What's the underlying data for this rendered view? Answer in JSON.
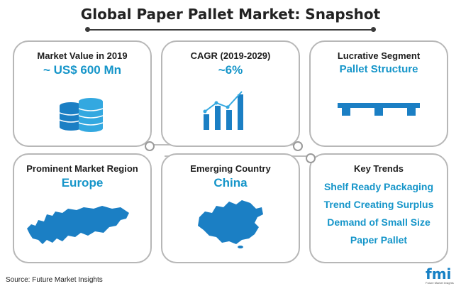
{
  "title": "Global Paper Pallet Market: Snapshot",
  "cards": [
    {
      "heading": "Market Value in 2019",
      "value": "~ US$ 600 Mn",
      "icon": "database-icon"
    },
    {
      "heading": "CAGR (2019-2029)",
      "value": "~6%",
      "icon": "bar-chart-icon"
    },
    {
      "heading": "Lucrative Segment",
      "value": "Pallet Structure",
      "icon": "pallet-icon"
    },
    {
      "heading": "Prominent Market Region",
      "value": "Europe",
      "icon": "europe-map-icon"
    },
    {
      "heading": "Emerging Country",
      "value": "China",
      "icon": "china-map-icon"
    },
    {
      "heading": "Key Trends",
      "icon": "none"
    }
  ],
  "key_trends": [
    "Shelf Ready Packaging",
    "Trend Creating Surplus",
    "Demand of Small Size",
    "Paper Pallet"
  ],
  "source": "Source: Future Market Insights",
  "logo": {
    "text": "fmi",
    "tagline": "Future Market Insights"
  },
  "colors": {
    "accent": "#1595c9",
    "icon_blue": "#1b7fc4",
    "border": "#b7b7b7"
  }
}
